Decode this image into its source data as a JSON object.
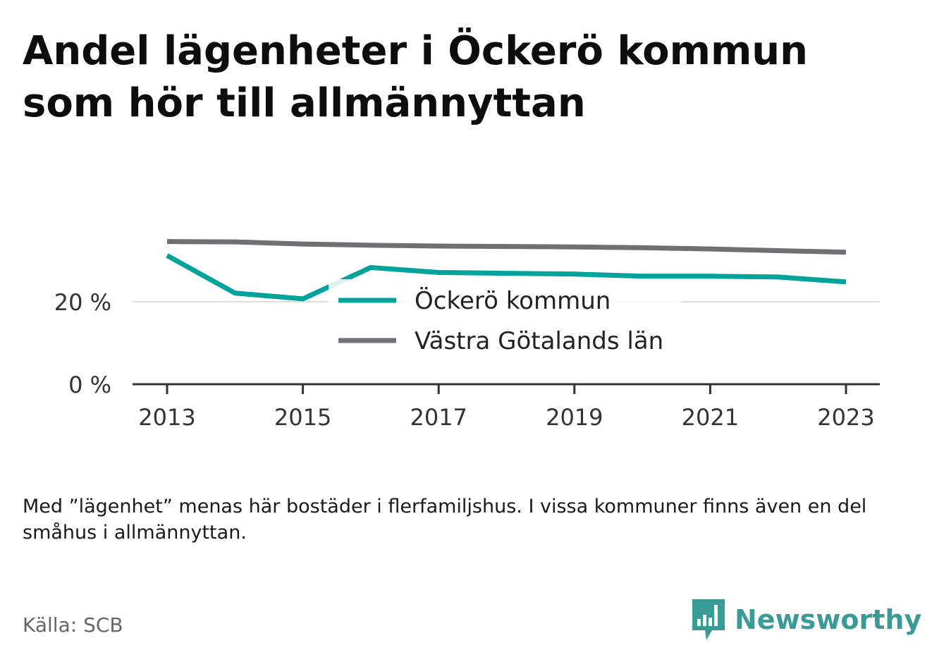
{
  "title": "Andel lägenheter i Öckerö kommun som hör till allmännyttan",
  "note": "Med ”lägenhet” menas här bostäder i flerfamiljshus. I vissa kommuner finns även en del småhus i allmännyttan.",
  "source": "Källa: SCB",
  "brand": {
    "name": "Newsworthy",
    "icon": "newsworthy-logo-icon",
    "color": "#3a9a95"
  },
  "chart_data": {
    "type": "line",
    "title": "Andel lägenheter i Öckerö kommun som hör till allmännyttan",
    "xlabel": "",
    "ylabel": "",
    "x": [
      2013,
      2014,
      2015,
      2016,
      2017,
      2018,
      2019,
      2020,
      2021,
      2022,
      2023
    ],
    "x_ticks": [
      "2013",
      "2015",
      "2017",
      "2019",
      "2021",
      "2023"
    ],
    "y_ticks": [
      "0 %",
      "20 %"
    ],
    "ylim": [
      0,
      40
    ],
    "grid": true,
    "legend_position": "center",
    "series": [
      {
        "name": "Öckerö kommun",
        "color": "#00a39b",
        "values": [
          31.2,
          22.1,
          20.7,
          28.3,
          27.1,
          26.9,
          26.7,
          26.2,
          26.2,
          26.0,
          24.8
        ]
      },
      {
        "name": "Västra Götalands län",
        "color": "#6f6f74",
        "values": [
          34.6,
          34.5,
          34.0,
          33.7,
          33.5,
          33.4,
          33.3,
          33.1,
          32.8,
          32.4,
          32.0
        ]
      }
    ]
  }
}
